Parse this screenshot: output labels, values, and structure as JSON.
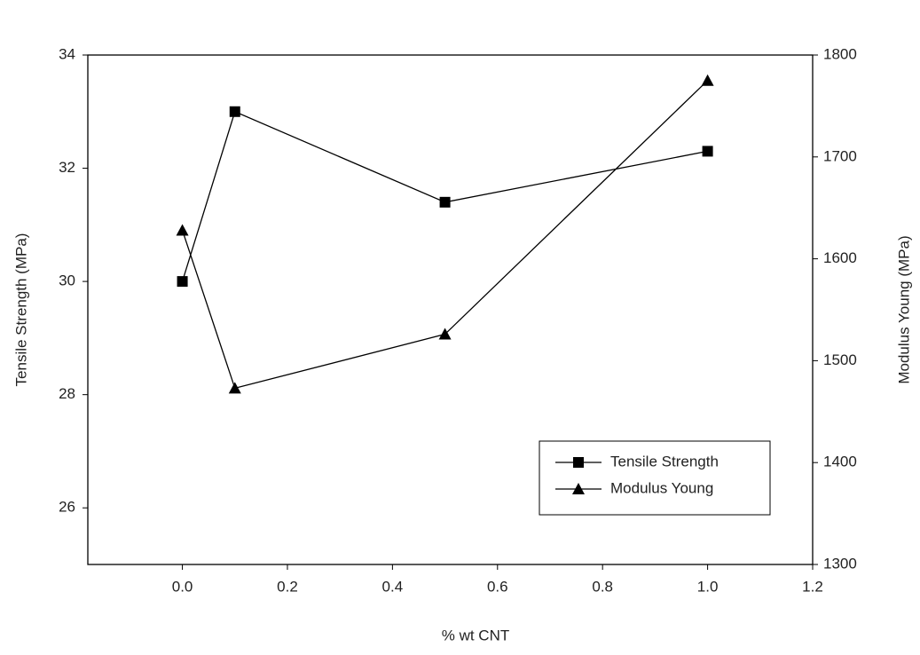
{
  "chart_data": {
    "type": "line",
    "x_label": "% wt CNT",
    "y_label": "Tensile Strength (MPa)",
    "y2_label": "Modulus Young (MPa)",
    "x": [
      0,
      0.1,
      0.5,
      1.0
    ],
    "series": [
      {
        "name": "Tensile Strength",
        "color": "#000000",
        "marker": "square",
        "values": [
          30.0,
          33.0,
          31.4,
          32.3
        ]
      },
      {
        "name": "Modulus Young",
        "color": "#000000",
        "marker": "triangle",
        "axis": "y2",
        "values": [
          1628,
          1473,
          1526,
          1775
        ]
      }
    ],
    "xlim": [
      -0.18,
      1.2
    ],
    "xticks": [
      {
        "value": 0,
        "label": "0.0"
      },
      0.2,
      0.4,
      0.6,
      0.8,
      {
        "value": 1,
        "label": "1.0"
      },
      1.2
    ],
    "ylim": [
      25,
      34
    ],
    "yticks": [
      26,
      28,
      30,
      32,
      34
    ],
    "y2lim": [
      1300,
      1800
    ],
    "y2ticks": [
      1300,
      1400,
      1500,
      1600,
      1700,
      1800
    ],
    "legend": "lower right",
    "grid": false
  }
}
